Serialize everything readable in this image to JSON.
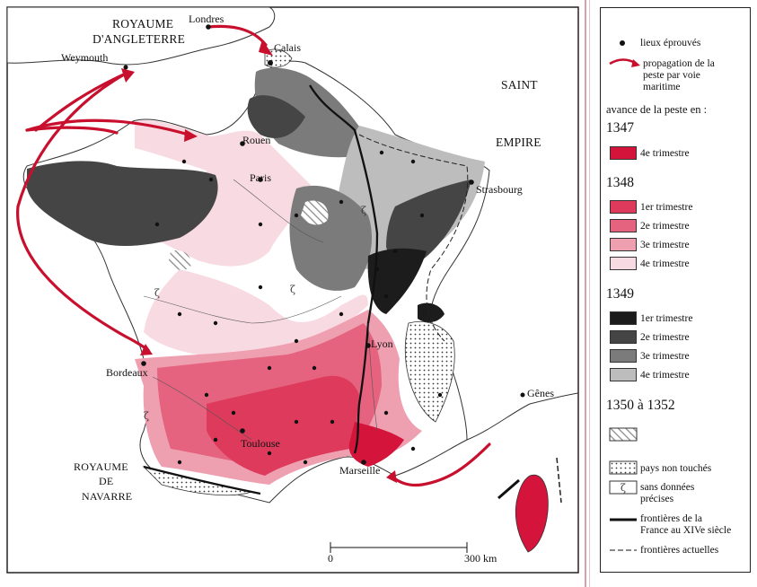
{
  "map_labels": {
    "royaume_angleterre_1": "ROYAUME",
    "royaume_angleterre_2": "D'ANGLETERRE",
    "londres": "Londres",
    "calais": "Calais",
    "weymouth": "Weymouth",
    "saint": "SAINT",
    "empire": "EMPIRE",
    "rouen": "Rouen",
    "paris": "Paris",
    "strasbourg": "Strasbourg",
    "lyon": "Lyon",
    "bordeaux": "Bordeaux",
    "genes": "Gênes",
    "toulouse": "Toulouse",
    "marseille": "Marseille",
    "royaume_navarre_1": "ROYAUME",
    "royaume_navarre_2": "DE",
    "royaume_navarre_3": "NAVARRE",
    "scale_zero": "0",
    "scale_300": "300 km"
  },
  "legend": {
    "lieux": "lieux éprouvés",
    "propagation": "propagation de la\npeste par voie\nmaritime",
    "avance": "avance de la peste en :",
    "y1347": "1347",
    "y1347_q4": "4e trimestre",
    "y1348": "1348",
    "y1348_q1": "1er trimestre",
    "y1348_q2": "2e trimestre",
    "y1348_q3": "3e trimestre",
    "y1348_q4": "4e trimestre",
    "y1349": "1349",
    "y1349_q1": "1er trimestre",
    "y1349_q2": "2e trimestre",
    "y1349_q3": "3e trimestre",
    "y1349_q4": "4e trimestre",
    "y1350": "1350 à 1352",
    "non_touches": "pays non touchés",
    "sans_donnees": "sans données\nprécises",
    "frontieres_xiv": "frontières de la\nFrance au XIVe siècle",
    "frontieres_actuelles": "frontières actuelles"
  },
  "colors": {
    "q1347_4": "#d4143a",
    "q1348_1": "#dd3a5c",
    "q1348_2": "#e5637f",
    "q1348_3": "#eea0b1",
    "q1348_4": "#f8dbe2",
    "q1349_1": "#1c1c1c",
    "q1349_2": "#454545",
    "q1349_3": "#7b7b7b",
    "q1349_4": "#bdbdbd",
    "arrow": "#c8102e"
  }
}
